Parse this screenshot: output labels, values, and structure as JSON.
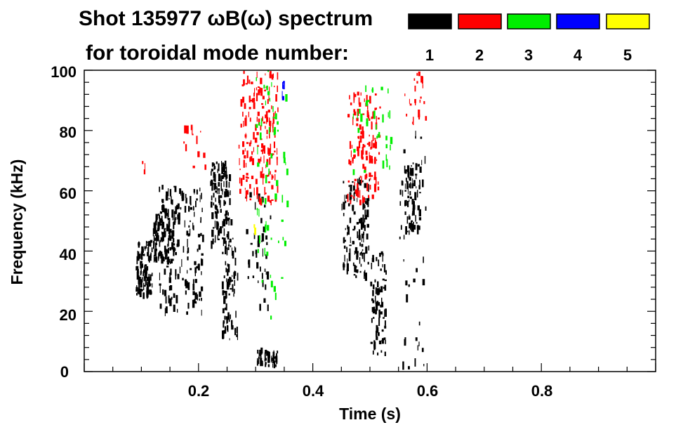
{
  "chart_data": {
    "type": "heatmap",
    "title_line1": "Shot 135977 ωB(ω) spectrum",
    "title_line2": "for toroidal mode number:",
    "xlabel": "Time (s)",
    "ylabel": "Frequency (kHz)",
    "xlim": [
      0,
      1.0
    ],
    "ylim": [
      0,
      100
    ],
    "x_ticks": [
      "0.2",
      "0.4",
      "0.6",
      "0.8"
    ],
    "x_tick_values": [
      0.2,
      0.4,
      0.6,
      0.8
    ],
    "y_ticks": [
      "0",
      "20",
      "40",
      "60",
      "80",
      "100"
    ],
    "y_tick_values": [
      0,
      20,
      40,
      60,
      80,
      100
    ],
    "legend": [
      {
        "label": "1",
        "color": "#000000"
      },
      {
        "label": "2",
        "color": "#ff0000"
      },
      {
        "label": "3",
        "color": "#00ee00"
      },
      {
        "label": "4",
        "color": "#0000ff"
      },
      {
        "label": "5",
        "color": "#ffff00"
      }
    ],
    "regions": [
      {
        "mode": 1,
        "t": [
          0.09,
          0.12
        ],
        "f": [
          24,
          44
        ],
        "density": 0.9
      },
      {
        "mode": 1,
        "t": [
          0.12,
          0.16
        ],
        "f": [
          36,
          54
        ],
        "density": 0.7
      },
      {
        "mode": 1,
        "t": [
          0.13,
          0.21
        ],
        "f": [
          18,
          62
        ],
        "density": 0.25
      },
      {
        "mode": 1,
        "t": [
          0.22,
          0.26
        ],
        "f": [
          40,
          70
        ],
        "density": 0.55
      },
      {
        "mode": 1,
        "t": [
          0.24,
          0.27
        ],
        "f": [
          10,
          45
        ],
        "density": 0.35
      },
      {
        "mode": 1,
        "t": [
          0.3,
          0.34
        ],
        "f": [
          1,
          8
        ],
        "density": 0.8
      },
      {
        "mode": 1,
        "t": [
          0.28,
          0.33
        ],
        "f": [
          20,
          60
        ],
        "density": 0.1
      },
      {
        "mode": 1,
        "t": [
          0.45,
          0.5
        ],
        "f": [
          30,
          65
        ],
        "density": 0.35
      },
      {
        "mode": 1,
        "t": [
          0.5,
          0.53
        ],
        "f": [
          5,
          40
        ],
        "density": 0.35
      },
      {
        "mode": 1,
        "t": [
          0.56,
          0.59
        ],
        "f": [
          45,
          70
        ],
        "density": 0.45
      },
      {
        "mode": 1,
        "t": [
          0.55,
          0.6
        ],
        "f": [
          0,
          80
        ],
        "density": 0.06
      },
      {
        "mode": 2,
        "t": [
          0.27,
          0.34
        ],
        "f": [
          55,
          100
        ],
        "density": 0.28
      },
      {
        "mode": 2,
        "t": [
          0.17,
          0.22
        ],
        "f": [
          65,
          82
        ],
        "density": 0.08
      },
      {
        "mode": 2,
        "t": [
          0.1,
          0.11
        ],
        "f": [
          64,
          70
        ],
        "density": 0.3
      },
      {
        "mode": 2,
        "t": [
          0.46,
          0.52
        ],
        "f": [
          55,
          93
        ],
        "density": 0.28
      },
      {
        "mode": 2,
        "t": [
          0.56,
          0.6
        ],
        "f": [
          80,
          100
        ],
        "density": 0.15
      },
      {
        "mode": 3,
        "t": [
          0.3,
          0.36
        ],
        "f": [
          15,
          100
        ],
        "density": 0.06
      },
      {
        "mode": 3,
        "t": [
          0.47,
          0.54
        ],
        "f": [
          65,
          95
        ],
        "density": 0.08
      },
      {
        "mode": 4,
        "t": [
          0.345,
          0.355
        ],
        "f": [
          90,
          98
        ],
        "density": 0.45
      },
      {
        "mode": 5,
        "t": [
          0.295,
          0.305
        ],
        "f": [
          45,
          49
        ],
        "density": 0.4
      }
    ]
  }
}
